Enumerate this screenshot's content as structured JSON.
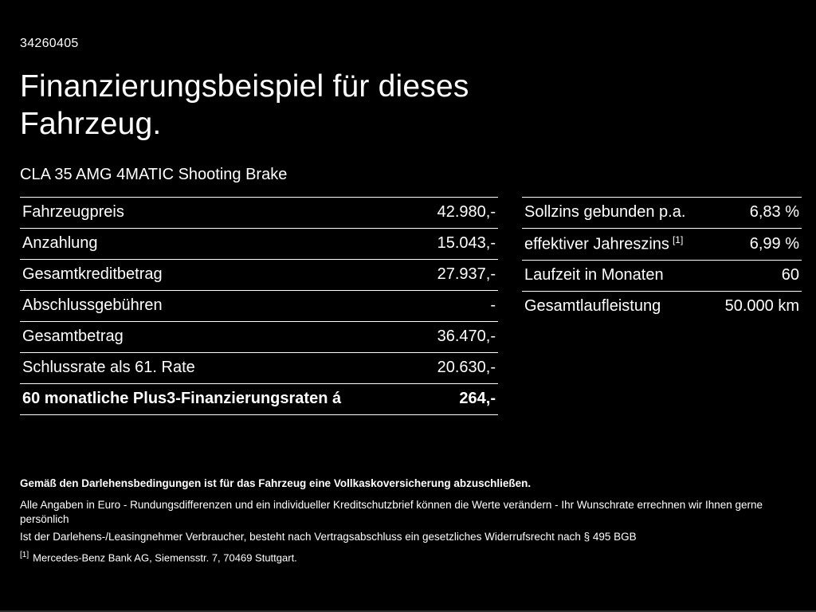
{
  "page": {
    "doc_id": "34260405",
    "title": "Finanzierungsbeispiel für dieses Fahrzeug.",
    "vehicle": "CLA 35 AMG 4MATIC Shooting Brake"
  },
  "left_table": {
    "rows": [
      {
        "label": "Fahrzeugpreis",
        "value": "42.980,-"
      },
      {
        "label": "Anzahlung",
        "value": "15.043,-"
      },
      {
        "label": "Gesamtkreditbetrag",
        "value": "27.937,-"
      },
      {
        "label": "Abschlussgebühren",
        "value": "-"
      },
      {
        "label": "Gesamtbetrag",
        "value": "36.470,-"
      },
      {
        "label": "Schlussrate als 61. Rate",
        "value": "20.630,-"
      },
      {
        "label": "60 monatliche Plus3-Finanzierungsraten á",
        "value": "264,-"
      }
    ]
  },
  "right_table": {
    "rows": [
      {
        "label": "Sollzins gebunden p.a.",
        "value": "6,83 %"
      },
      {
        "label": "effektiver Jahreszins",
        "sup": "[1]",
        "value": "6,99 %"
      },
      {
        "label": "Laufzeit in Monaten",
        "value": "60"
      },
      {
        "label": "Gesamtlaufleistung",
        "value": "50.000 km"
      }
    ]
  },
  "footer": {
    "bold_line": "Gemäß den Darlehensbedingungen ist für das Fahrzeug eine Vollkaskoversicherung abzuschließen.",
    "line2": "Alle Angaben in Euro - Rundungsdifferenzen und ein individueller Kreditschutzbrief können die Werte verändern - Ihr Wunschrate errechnen wir Ihnen gerne persönlich",
    "line3": "Ist der Darlehens-/Leasingnehmer Verbraucher, besteht nach Vertragsabschluss ein gesetzliches Widerrufsrecht nach § 495 BGB",
    "footnote_marker": "[1]",
    "footnote_text": "Mercedes-Benz Bank AG, Siemensstr. 7, 70469 Stuttgart."
  }
}
